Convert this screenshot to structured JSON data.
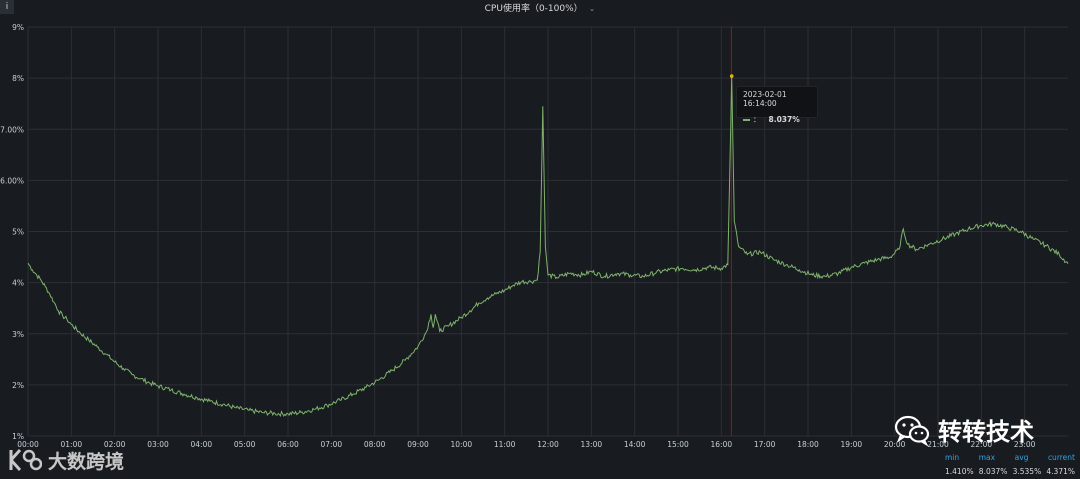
{
  "panel": {
    "info_icon": "i",
    "title": "CPU使用率（0-100%）",
    "title_caret": "⌄"
  },
  "chart_data": {
    "type": "line",
    "x_ticks": [
      "00:00",
      "01:00",
      "02:00",
      "03:00",
      "04:00",
      "05:00",
      "06:00",
      "07:00",
      "08:00",
      "09:00",
      "10:00",
      "11:00",
      "12:00",
      "13:00",
      "14:00",
      "15:00",
      "16:00",
      "17:00",
      "18:00",
      "19:00",
      "20:00",
      "21:00",
      "22:00",
      "23:00"
    ],
    "y_ticks": [
      "1%",
      "2%",
      "3%",
      "4%",
      "5%",
      "6.00%",
      "7.00%",
      "8%",
      "9%"
    ],
    "ylim": [
      1,
      9
    ],
    "xlim_hours": [
      0,
      24
    ],
    "grid": true,
    "series": [
      {
        "color": "#7eb26d",
        "points": [
          [
            0.0,
            4.38
          ],
          [
            0.1,
            4.25
          ],
          [
            0.2,
            4.15
          ],
          [
            0.3,
            4.05
          ],
          [
            0.4,
            3.92
          ],
          [
            0.5,
            3.78
          ],
          [
            0.6,
            3.62
          ],
          [
            0.7,
            3.45
          ],
          [
            0.8,
            3.35
          ],
          [
            0.9,
            3.28
          ],
          [
            1.0,
            3.18
          ],
          [
            1.2,
            3.02
          ],
          [
            1.4,
            2.88
          ],
          [
            1.6,
            2.74
          ],
          [
            1.8,
            2.6
          ],
          [
            2.0,
            2.45
          ],
          [
            2.2,
            2.32
          ],
          [
            2.4,
            2.2
          ],
          [
            2.6,
            2.12
          ],
          [
            2.8,
            2.04
          ],
          [
            3.0,
            1.98
          ],
          [
            3.3,
            1.9
          ],
          [
            3.6,
            1.82
          ],
          [
            3.9,
            1.75
          ],
          [
            4.2,
            1.68
          ],
          [
            4.5,
            1.62
          ],
          [
            4.8,
            1.55
          ],
          [
            5.1,
            1.5
          ],
          [
            5.4,
            1.46
          ],
          [
            5.7,
            1.44
          ],
          [
            6.0,
            1.43
          ],
          [
            6.3,
            1.46
          ],
          [
            6.6,
            1.52
          ],
          [
            6.9,
            1.6
          ],
          [
            7.2,
            1.7
          ],
          [
            7.5,
            1.82
          ],
          [
            7.8,
            1.95
          ],
          [
            8.1,
            2.1
          ],
          [
            8.4,
            2.28
          ],
          [
            8.7,
            2.48
          ],
          [
            9.0,
            2.75
          ],
          [
            9.2,
            3.05
          ],
          [
            9.3,
            3.38
          ],
          [
            9.35,
            3.12
          ],
          [
            9.4,
            3.38
          ],
          [
            9.5,
            3.05
          ],
          [
            9.7,
            3.15
          ],
          [
            10.0,
            3.32
          ],
          [
            10.2,
            3.45
          ],
          [
            10.4,
            3.6
          ],
          [
            10.6,
            3.7
          ],
          [
            10.8,
            3.78
          ],
          [
            11.0,
            3.85
          ],
          [
            11.2,
            3.95
          ],
          [
            11.4,
            4.02
          ],
          [
            11.6,
            4.02
          ],
          [
            11.75,
            4.05
          ],
          [
            11.82,
            4.6
          ],
          [
            11.88,
            7.45
          ],
          [
            11.94,
            4.7
          ],
          [
            12.0,
            4.15
          ],
          [
            12.2,
            4.1
          ],
          [
            12.5,
            4.18
          ],
          [
            12.8,
            4.15
          ],
          [
            13.0,
            4.22
          ],
          [
            13.3,
            4.12
          ],
          [
            13.6,
            4.18
          ],
          [
            13.9,
            4.15
          ],
          [
            14.2,
            4.12
          ],
          [
            14.5,
            4.2
          ],
          [
            14.8,
            4.25
          ],
          [
            15.1,
            4.28
          ],
          [
            15.4,
            4.25
          ],
          [
            15.7,
            4.3
          ],
          [
            16.0,
            4.28
          ],
          [
            16.15,
            4.35
          ],
          [
            16.24,
            8.04
          ],
          [
            16.3,
            5.2
          ],
          [
            16.4,
            4.7
          ],
          [
            16.6,
            4.55
          ],
          [
            16.9,
            4.6
          ],
          [
            17.2,
            4.45
          ],
          [
            17.5,
            4.35
          ],
          [
            17.8,
            4.25
          ],
          [
            18.1,
            4.15
          ],
          [
            18.4,
            4.12
          ],
          [
            18.7,
            4.18
          ],
          [
            19.0,
            4.3
          ],
          [
            19.3,
            4.38
          ],
          [
            19.6,
            4.45
          ],
          [
            19.9,
            4.5
          ],
          [
            20.1,
            4.65
          ],
          [
            20.2,
            5.05
          ],
          [
            20.3,
            4.75
          ],
          [
            20.5,
            4.65
          ],
          [
            20.8,
            4.75
          ],
          [
            21.1,
            4.85
          ],
          [
            21.4,
            4.95
          ],
          [
            21.7,
            5.05
          ],
          [
            22.0,
            5.12
          ],
          [
            22.3,
            5.15
          ],
          [
            22.6,
            5.08
          ],
          [
            22.9,
            5.0
          ],
          [
            23.2,
            4.85
          ],
          [
            23.5,
            4.72
          ],
          [
            23.8,
            4.55
          ],
          [
            24.0,
            4.37
          ]
        ]
      }
    ],
    "hover_x_hours": 16.233,
    "tooltip": {
      "timestamp": "2023-02-01 16:14:00",
      "series_label": "：",
      "value": "8.037%"
    },
    "legend": {
      "headers": [
        "min",
        "max",
        "avg",
        "current"
      ],
      "values": [
        "1.410%",
        "8.037%",
        "3.535%",
        "4.371%"
      ]
    }
  },
  "watermarks": {
    "left_text": "大数跨境",
    "right_text": "转转技术",
    "left_logo_icon": "bigdata-logo-icon",
    "right_logo_icon": "wechat-icon"
  }
}
